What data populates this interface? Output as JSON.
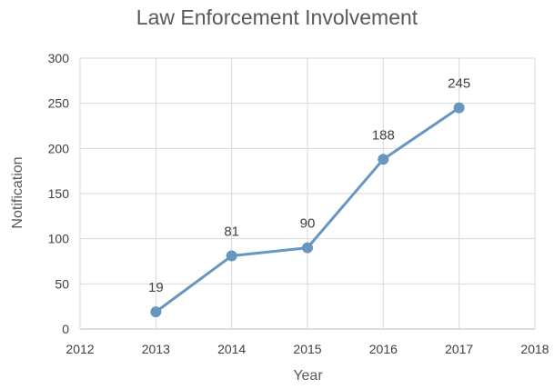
{
  "chart_data": {
    "type": "line",
    "title": "Law Enforcement Involvement",
    "xlabel": "Year",
    "ylabel": "Notification",
    "x_ticks": [
      2012,
      2013,
      2014,
      2015,
      2016,
      2017,
      2018
    ],
    "y_ticks": [
      0,
      50,
      100,
      150,
      200,
      250,
      300
    ],
    "xlim": [
      2012,
      2018
    ],
    "ylim": [
      0,
      300
    ],
    "grid": true,
    "series": [
      {
        "x": [
          2013,
          2014,
          2015,
          2016,
          2017
        ],
        "values": [
          19,
          81,
          90,
          188,
          245
        ],
        "color": "#6896c3",
        "data_labels": [
          "19",
          "81",
          "90",
          "188",
          "245"
        ]
      }
    ]
  }
}
